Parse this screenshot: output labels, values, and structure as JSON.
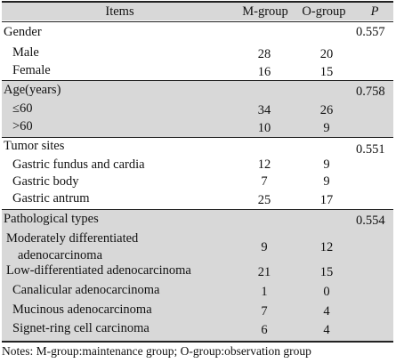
{
  "header": {
    "items": "Items",
    "m_group": "M-group",
    "o_group": "O-group",
    "p": "P"
  },
  "sections": [
    {
      "name": "Gender",
      "p": "0.557",
      "shaded": false,
      "rows": [
        {
          "label": "Male",
          "m": "28",
          "o": "20"
        },
        {
          "label": "Female",
          "m": "16",
          "o": "15"
        }
      ]
    },
    {
      "name": "Age(years)",
      "p": "0.758",
      "shaded": true,
      "rows": [
        {
          "label": "≤60",
          "m": "34",
          "o": "26"
        },
        {
          "label": ">60",
          "m": "10",
          "o": "9"
        }
      ]
    },
    {
      "name": "Tumor sites",
      "p": "0.551",
      "shaded": false,
      "rows": [
        {
          "label": "Gastric fundus and cardia",
          "m": "12",
          "o": "9"
        },
        {
          "label": "Gastric body",
          "m": "7",
          "o": "9"
        },
        {
          "label": "Gastric antrum",
          "m": "25",
          "o": "17"
        }
      ]
    },
    {
      "name": "Pathological types",
      "p": "0.554",
      "shaded": true,
      "rows": [
        {
          "label": "Moderately differentiated",
          "label2": "adenocarcinoma",
          "m": "9",
          "o": "12"
        },
        {
          "label": "Low-differentiated adenocarcinoma",
          "m": "21",
          "o": "15"
        },
        {
          "label": "Canalicular adenocarcinoma",
          "m": "1",
          "o": "0"
        },
        {
          "label": "Mucinous adenocarcinoma",
          "m": "7",
          "o": "4"
        },
        {
          "label": "Signet-ring cell carcinoma",
          "m": "6",
          "o": "4"
        }
      ]
    }
  ],
  "note": "Notes: M-group:maintenance group; O-group:observation group"
}
